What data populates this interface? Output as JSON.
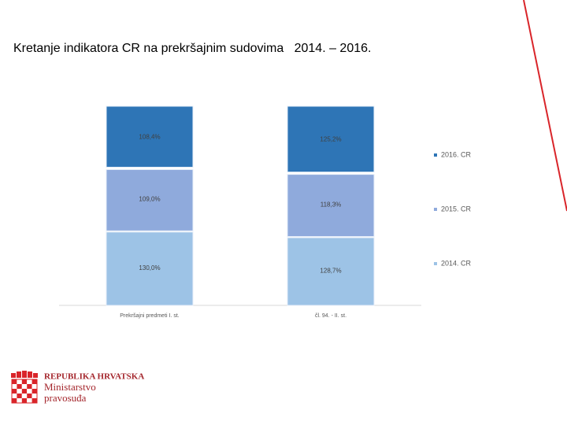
{
  "chart_data": {
    "type": "bar",
    "stacked": "percent",
    "title": "Kretanje indikatora CR na prekršajnim sudovima   2014. – 2016.",
    "categories": [
      "Prekršajni predmeti I. st.",
      "čl. 94. - II. st."
    ],
    "series": [
      {
        "name": "2014. CR",
        "color": "#9dc3e6",
        "values": [
          130.0,
          128.7
        ],
        "value_labels": [
          "130,0%",
          "128,7%"
        ]
      },
      {
        "name": "2015. CR",
        "color": "#8faadc",
        "values": [
          109.0,
          118.3
        ],
        "value_labels": [
          "109,0%",
          "118,3%"
        ]
      },
      {
        "name": "2016. CR",
        "color": "#2e75b6",
        "values": [
          108.4,
          125.2
        ],
        "value_labels": [
          "108,4%",
          "125,2%"
        ]
      }
    ],
    "legend": "right"
  },
  "footer": {
    "lines": [
      "REPUBLIKA HRVATSKA",
      "Ministarstvo",
      "pravosuđa"
    ]
  }
}
